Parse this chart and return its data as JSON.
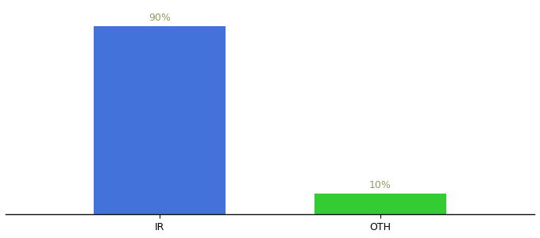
{
  "categories": [
    "IR",
    "OTH"
  ],
  "values": [
    90,
    10
  ],
  "bar_colors": [
    "#4472db",
    "#33cc33"
  ],
  "label_texts": [
    "90%",
    "10%"
  ],
  "background_color": "#ffffff",
  "ylim": [
    0,
    100
  ],
  "label_fontsize": 9,
  "tick_fontsize": 9,
  "label_color": "#999966",
  "x_positions": [
    1,
    2
  ],
  "bar_width": 0.6,
  "xlim": [
    0.3,
    2.7
  ]
}
